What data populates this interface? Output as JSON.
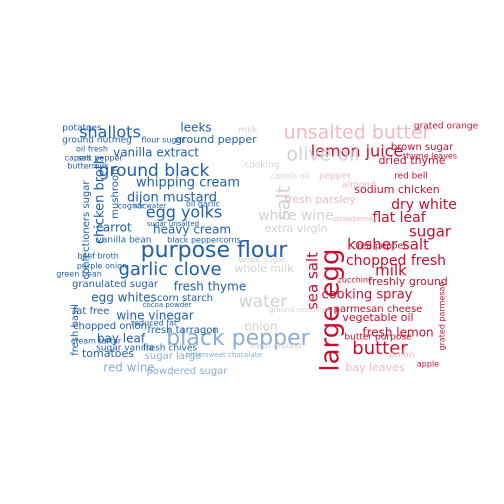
{
  "palette": {
    "blue": "#1f5fae",
    "light_blue": "#8aaed6",
    "grey": "#d2d2d2",
    "pink": "#f0b9c1",
    "red": "#c8102e"
  },
  "words": [
    {
      "id": "purpose-flour",
      "text": "purpose flour"
    },
    {
      "id": "black-pepper",
      "text": "black pepper"
    },
    {
      "id": "large-egg",
      "text": "large egg"
    },
    {
      "id": "garlic-clove",
      "text": "garlic clove"
    },
    {
      "id": "ground-black",
      "text": "ground black"
    },
    {
      "id": "lemon-juice",
      "text": "lemon juice"
    },
    {
      "id": "olive-oil",
      "text": "olive oil"
    },
    {
      "id": "unsalted-butter",
      "text": "unsalted butter"
    },
    {
      "id": "butter",
      "text": "butter"
    },
    {
      "id": "shallots",
      "text": "shallots"
    },
    {
      "id": "egg-yolks",
      "text": "egg yolks"
    },
    {
      "id": "kosher-salt",
      "text": "kosher salt"
    },
    {
      "id": "sugar",
      "text": "sugar"
    },
    {
      "id": "milk",
      "text": "milk"
    },
    {
      "id": "water",
      "text": "water"
    },
    {
      "id": "salt",
      "text": "salt"
    },
    {
      "id": "sea-salt",
      "text": "sea salt"
    },
    {
      "id": "chicken-broth",
      "text": "chicken broth"
    },
    {
      "id": "whipping-cream",
      "text": "whipping cream"
    },
    {
      "id": "heavy-cream",
      "text": "heavy cream"
    },
    {
      "id": "fresh-thyme",
      "text": "fresh thyme"
    },
    {
      "id": "dijon-mustard",
      "text": "dijon mustard"
    },
    {
      "id": "vanilla-extract",
      "text": "vanilla extract"
    },
    {
      "id": "ground-pepper",
      "text": "ground pepper"
    },
    {
      "id": "leeks",
      "text": "leeks"
    },
    {
      "id": "carrot",
      "text": "carrot"
    },
    {
      "id": "egg-whites",
      "text": "egg whites"
    },
    {
      "id": "wine-vinegar",
      "text": "wine vinegar"
    },
    {
      "id": "bay-leaf",
      "text": "bay leaf"
    },
    {
      "id": "chopped-fresh",
      "text": "chopped fresh"
    },
    {
      "id": "dry-white",
      "text": "dry white"
    },
    {
      "id": "flat-leaf",
      "text": "flat leaf"
    },
    {
      "id": "cooking-spray",
      "text": "cooking spray"
    },
    {
      "id": "fresh-lemon",
      "text": "fresh lemon"
    },
    {
      "id": "vegetable-oil",
      "text": "vegetable oil"
    },
    {
      "id": "parmesan-cheese",
      "text": "parmesan cheese"
    },
    {
      "id": "freshly-ground",
      "text": "freshly ground"
    },
    {
      "id": "brown-sugar",
      "text": "brown sugar"
    },
    {
      "id": "dried-thyme",
      "text": "dried thyme"
    },
    {
      "id": "sodium-chicken",
      "text": "sodium chicken"
    },
    {
      "id": "red-bell",
      "text": "red bell"
    },
    {
      "id": "red-pepper",
      "text": "red pepper"
    },
    {
      "id": "grated-orange",
      "text": "grated orange"
    },
    {
      "id": "thyme-leaves",
      "text": "thyme leaves"
    },
    {
      "id": "zucchini",
      "text": "zucchini"
    },
    {
      "id": "almond",
      "text": "almond"
    },
    {
      "id": "bay-leaves",
      "text": "bay leaves"
    },
    {
      "id": "apple",
      "text": "apple"
    },
    {
      "id": "grated-parmesan",
      "text": "grated parmesan"
    },
    {
      "id": "butter-purpose",
      "text": "butter purpose"
    },
    {
      "id": "white-wine",
      "text": "white wine"
    },
    {
      "id": "extra-virgin",
      "text": "extra virgin"
    },
    {
      "id": "whole-milk",
      "text": "whole milk"
    },
    {
      "id": "fresh-parsley",
      "text": "fresh parsley"
    },
    {
      "id": "onion",
      "text": "onion"
    },
    {
      "id": "red-wine",
      "text": "red wine"
    },
    {
      "id": "powdered-sugar",
      "text": "powdered sugar"
    },
    {
      "id": "tomatoes",
      "text": "tomatoes"
    },
    {
      "id": "sugar-large",
      "text": "sugar large"
    },
    {
      "id": "chopped-onion",
      "text": "chopped onion"
    },
    {
      "id": "fat-free",
      "text": "fat free"
    },
    {
      "id": "fresh-basil",
      "text": "fresh basil"
    },
    {
      "id": "granulated-sugar",
      "text": "granulated sugar"
    },
    {
      "id": "confectioners-sugar",
      "text": "confectioners sugar"
    },
    {
      "id": "vanilla-bean",
      "text": "vanilla bean"
    },
    {
      "id": "black-peppercorns",
      "text": "black peppercorns"
    },
    {
      "id": "corn-starch",
      "text": "corn starch"
    },
    {
      "id": "fresh-tarragon",
      "text": "fresh tarragon"
    },
    {
      "id": "sugar-vanilla",
      "text": "sugar vanilla"
    },
    {
      "id": "fresh-chives",
      "text": "fresh chives"
    },
    {
      "id": "beef-broth",
      "text": "beef broth"
    },
    {
      "id": "green-bean",
      "text": "green bean"
    },
    {
      "id": "cream-tartar",
      "text": "cream tartar"
    },
    {
      "id": "purple-onion",
      "text": "purple onion"
    },
    {
      "id": "reduced-fat",
      "text": "reduced fat"
    },
    {
      "id": "potatoes",
      "text": "potatoes"
    },
    {
      "id": "ground-nutmeg",
      "text": "ground nutmeg"
    },
    {
      "id": "oil-fresh",
      "text": "oil fresh"
    },
    {
      "id": "flour-sugar",
      "text": "flour sugar"
    },
    {
      "id": "capers",
      "text": "capers"
    },
    {
      "id": "salt-pepper",
      "text": "salt pepper"
    },
    {
      "id": "mushroom",
      "text": "mushroom"
    },
    {
      "id": "buttermilk",
      "text": "buttermilk"
    },
    {
      "id": "cognac",
      "text": "cognac"
    },
    {
      "id": "oil-garlic",
      "text": "oil garlic"
    },
    {
      "id": "ice-water",
      "text": "ice water"
    },
    {
      "id": "sugar-unsalted",
      "text": "sugar unsalted"
    },
    {
      "id": "cocoa-powder",
      "text": "cocoa powder"
    },
    {
      "id": "bittersweet-chocolate",
      "text": "bittersweet chocolate"
    },
    {
      "id": "white-sugar",
      "text": "white sugar"
    },
    {
      "id": "fresh-ground",
      "text": "fresh ground"
    },
    {
      "id": "cooking",
      "text": "cooking"
    },
    {
      "id": "canola-oil",
      "text": "canola oil"
    },
    {
      "id": "ground-cinnamon",
      "text": "ground cinnamon"
    },
    {
      "id": "strawberries",
      "text": "strawberries"
    },
    {
      "id": "pepper",
      "text": "pepper"
    },
    {
      "id": "milk-2",
      "text": "milk"
    },
    {
      "id": "onion-2",
      "text": "onion"
    }
  ]
}
